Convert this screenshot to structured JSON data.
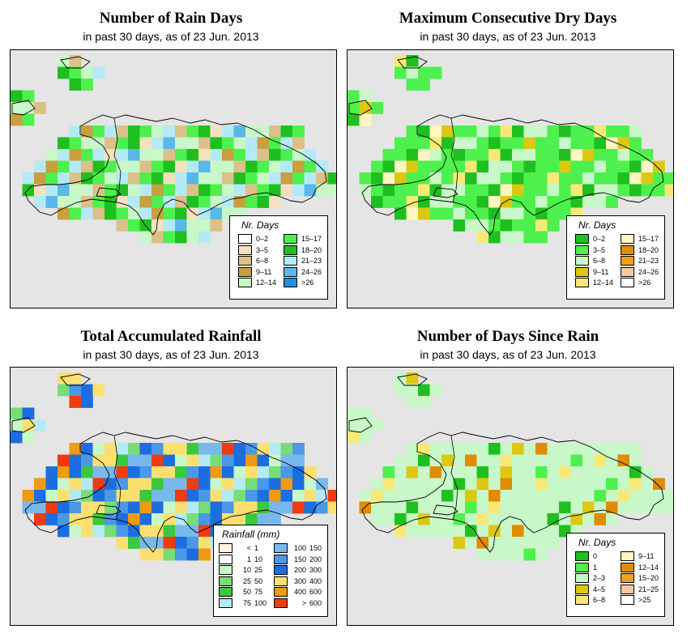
{
  "panels": [
    {
      "id": "rain-days",
      "title": "Number of Rain Days",
      "subtitle": "in past 30 days, as of  23 Jun. 2013",
      "legend_title": "Nr. Days",
      "legend": [
        {
          "label": "0–2",
          "color": "#ffffff"
        },
        {
          "label": "3–5",
          "color": "#f3e1c0"
        },
        {
          "label": "6–8",
          "color": "#dcc08a"
        },
        {
          "label": "9–11",
          "color": "#c8a040"
        },
        {
          "label": "12–14",
          "color": "#c8f7c8"
        },
        {
          "label": "15–17",
          "color": "#4ef04e"
        },
        {
          "label": "18–20",
          "color": "#1fbf1f"
        },
        {
          "label": "21–23",
          "color": "#b3eaf5"
        },
        {
          "label": "24–26",
          "color": "#5ab8e8"
        },
        {
          "label": ">26",
          "color": "#1f90d8"
        }
      ]
    },
    {
      "id": "max-dry-days",
      "title": "Maximum Consecutive Dry Days",
      "subtitle": "in past 30 days, as of  23 Jun. 2013",
      "legend_title": "Nr. Days",
      "legend": [
        {
          "label": "0–2",
          "color": "#1fbf1f"
        },
        {
          "label": "3–5",
          "color": "#4ef04e"
        },
        {
          "label": "6–8",
          "color": "#c8f7c8"
        },
        {
          "label": "9–11",
          "color": "#dcc812"
        },
        {
          "label": "12–14",
          "color": "#f8e878"
        },
        {
          "label": "15–17",
          "color": "#fff6c0"
        },
        {
          "label": "18–20",
          "color": "#e08c00"
        },
        {
          "label": "21–23",
          "color": "#f0a020"
        },
        {
          "label": "24–26",
          "color": "#f8c8a0"
        },
        {
          "label": ">26",
          "color": "#ffffff"
        }
      ]
    },
    {
      "id": "total-rainfall",
      "title": "Total Accumulated Rainfall",
      "subtitle": "in past 30 days, as of  23 Jun. 2013",
      "legend_title": "Rainfall (mm)",
      "legend": [
        {
          "a": "<",
          "b": "1",
          "c": "",
          "color": "#fdf3dc"
        },
        {
          "a": "1",
          "b": "10",
          "c": "",
          "color": "#ffffff"
        },
        {
          "a": "10",
          "b": "25",
          "c": "",
          "color": "#c8f7c8"
        },
        {
          "a": "25",
          "b": "50",
          "c": "",
          "color": "#78dc78"
        },
        {
          "a": "50",
          "b": "75",
          "c": "",
          "color": "#3cc83c"
        },
        {
          "a": "75",
          "b": "100",
          "c": "",
          "color": "#b3eaf5"
        },
        {
          "a": "100",
          "b": "150",
          "c": "",
          "color": "#78b8ec"
        },
        {
          "a": "150",
          "b": "200",
          "c": "",
          "color": "#4a98e8"
        },
        {
          "a": "200",
          "b": "300",
          "c": "",
          "color": "#1c6ee0"
        },
        {
          "a": "300",
          "b": "400",
          "c": "",
          "color": "#fbe070"
        },
        {
          "a": "400",
          "b": "600",
          "c": "",
          "color": "#f09a10"
        },
        {
          "a": ">",
          "b": "600",
          "c": "",
          "color": "#f03a10"
        }
      ]
    },
    {
      "id": "days-since-rain",
      "title": "Number of Days Since Rain",
      "subtitle": "in past 30 days, as of  23 Jun. 2013",
      "legend_title": "Nr. Days",
      "legend": [
        {
          "label": "0",
          "color": "#1fbf1f"
        },
        {
          "label": "1",
          "color": "#4ef04e"
        },
        {
          "label": "2–3",
          "color": "#c8f7c8"
        },
        {
          "label": "4–5",
          "color": "#dcc812"
        },
        {
          "label": "6–8",
          "color": "#f8e878"
        },
        {
          "label": "9–11",
          "color": "#fff6c0"
        },
        {
          "label": "12–14",
          "color": "#e08c00"
        },
        {
          "label": "15–20",
          "color": "#f0a020"
        },
        {
          "label": "21–25",
          "color": "#f8c8a0"
        },
        {
          "label": ">25",
          "color": "#ffffff"
        }
      ]
    }
  ]
}
